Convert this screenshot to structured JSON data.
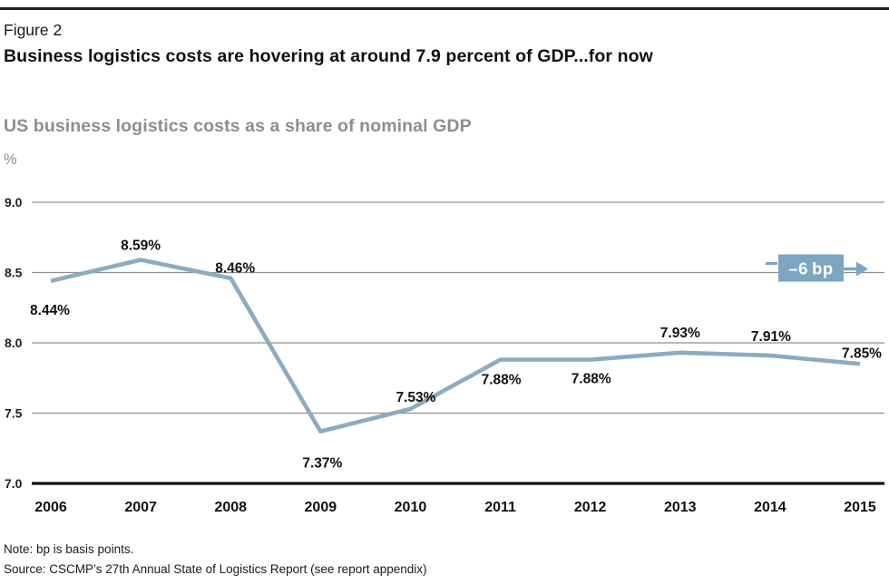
{
  "figure": {
    "label": "Figure 2",
    "title": "Business logistics costs are hovering at around 7.9 percent of GDP...for now",
    "subtitle": "US business logistics costs as a share of nominal GDP",
    "unit_label": "%",
    "note": "Note: bp is basis points.",
    "source": "Source: CSCMP’s 27th Annual State of Logistics Report (see report appendix)"
  },
  "chart_data": {
    "type": "line",
    "title": "US business logistics costs as a share of nominal GDP",
    "ylabel": "%",
    "categories": [
      "2006",
      "2007",
      "2008",
      "2009",
      "2010",
      "2011",
      "2012",
      "2013",
      "2014",
      "2015"
    ],
    "values": [
      8.44,
      8.59,
      8.46,
      7.37,
      7.53,
      7.88,
      7.88,
      7.93,
      7.91,
      7.85
    ],
    "point_labels": [
      "8.44%",
      "8.59%",
      "8.46%",
      "7.37%",
      "7.53%",
      "7.88%",
      "7.88%",
      "7.93%",
      "7.91%",
      "7.85%"
    ],
    "ylim": [
      7.0,
      9.0
    ],
    "ytick_values": [
      9.0,
      8.5,
      8.0,
      7.5,
      7.0
    ],
    "ytick_labels": [
      "9.0",
      "8.5",
      "8.0",
      "7.5",
      "7.0"
    ],
    "grid": "horizontal",
    "legend": "none",
    "annotation": {
      "label": "–6 bp",
      "y_value": 8.5
    },
    "colors": {
      "line": "#8dabc0",
      "badge": "#7ca5c2",
      "badge_text": "#ffffff",
      "grid": "#8f8f8f",
      "axis": "#111111",
      "label_text": "#111111"
    }
  }
}
